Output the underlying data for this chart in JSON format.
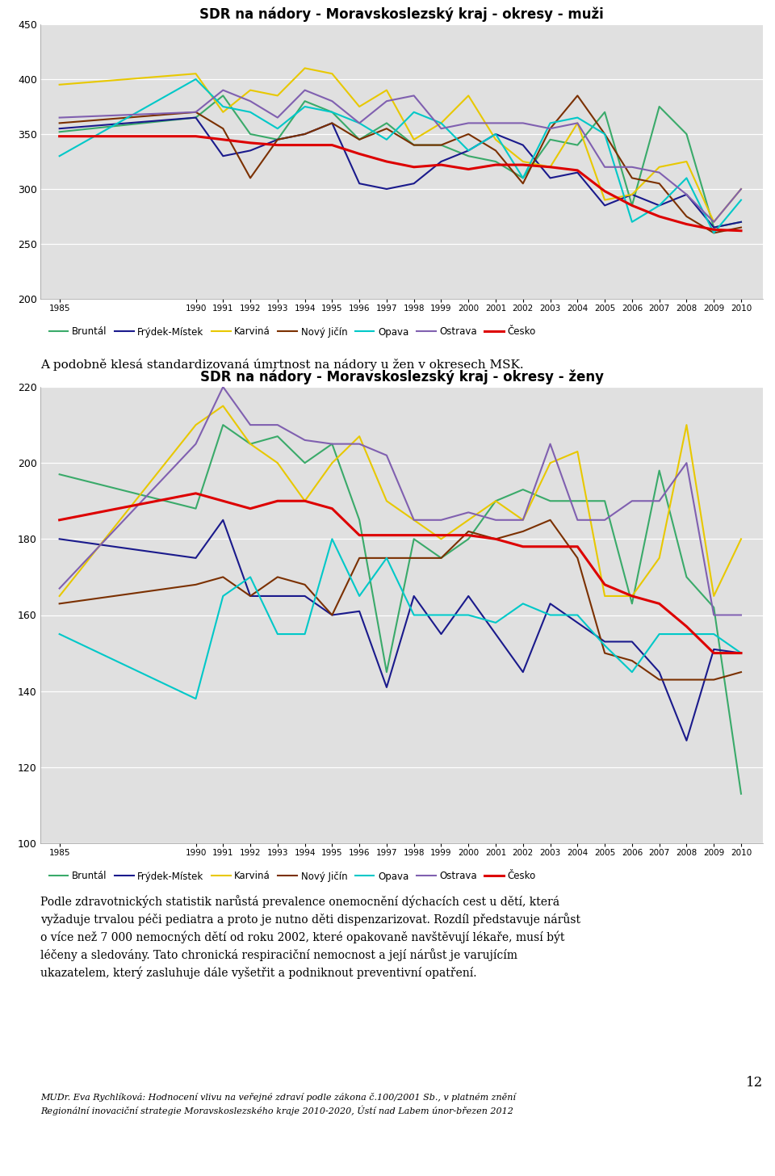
{
  "years": [
    1985,
    1990,
    1991,
    1992,
    1993,
    1994,
    1995,
    1996,
    1997,
    1998,
    1999,
    2000,
    2001,
    2002,
    2003,
    2004,
    2005,
    2006,
    2007,
    2008,
    2009,
    2010
  ],
  "title_muzi": "SDR na nádory - Moravskoslezský kraj - okresy - muži",
  "title_zeny": "SDR na nádory - Moravskoslezský kraj - okresy - ženy",
  "legend_labels": [
    "Bruntál",
    "Frýdek-Místek",
    "Karviná",
    "Nový Jičín",
    "Opava",
    "Ostrava",
    "Česko"
  ],
  "colors": [
    "#3aaa6a",
    "#1a1a8c",
    "#e8c800",
    "#7b3000",
    "#00c8c8",
    "#8060b0",
    "#dd0000"
  ],
  "muzi": {
    "Bruntal": [
      352,
      365,
      385,
      350,
      345,
      380,
      370,
      345,
      360,
      340,
      340,
      330,
      325,
      310,
      345,
      340,
      370,
      285,
      375,
      350,
      265,
      270
    ],
    "Frydek": [
      355,
      365,
      330,
      335,
      345,
      350,
      360,
      305,
      300,
      305,
      325,
      335,
      350,
      340,
      310,
      315,
      285,
      295,
      285,
      295,
      265,
      270
    ],
    "Karvina": [
      395,
      405,
      370,
      390,
      385,
      410,
      405,
      375,
      390,
      345,
      360,
      385,
      345,
      325,
      320,
      360,
      290,
      295,
      320,
      325,
      270,
      300
    ],
    "NovyJicin": [
      360,
      370,
      355,
      310,
      345,
      350,
      360,
      345,
      355,
      340,
      340,
      350,
      335,
      305,
      355,
      385,
      350,
      310,
      305,
      275,
      260,
      265
    ],
    "Opava": [
      330,
      400,
      375,
      370,
      355,
      375,
      370,
      360,
      345,
      370,
      360,
      335,
      350,
      310,
      360,
      365,
      350,
      270,
      285,
      310,
      260,
      290
    ],
    "Ostrava": [
      365,
      370,
      390,
      380,
      365,
      390,
      380,
      360,
      380,
      385,
      355,
      360,
      360,
      360,
      355,
      360,
      320,
      320,
      315,
      295,
      270,
      300
    ],
    "Cesko": [
      348,
      348,
      345,
      342,
      340,
      340,
      340,
      332,
      325,
      320,
      322,
      318,
      322,
      322,
      320,
      317,
      298,
      285,
      275,
      268,
      263,
      262
    ]
  },
  "zeny": {
    "Bruntal": [
      197,
      188,
      210,
      205,
      207,
      200,
      205,
      185,
      145,
      180,
      175,
      180,
      190,
      193,
      190,
      190,
      190,
      163,
      198,
      170,
      162,
      113
    ],
    "Frydek": [
      180,
      175,
      185,
      165,
      165,
      165,
      160,
      161,
      141,
      165,
      155,
      165,
      155,
      145,
      163,
      158,
      153,
      153,
      145,
      127,
      151,
      150
    ],
    "Karvina": [
      165,
      210,
      215,
      205,
      200,
      190,
      200,
      207,
      190,
      185,
      180,
      185,
      190,
      185,
      200,
      203,
      165,
      165,
      175,
      210,
      165,
      180
    ],
    "NovyJicin": [
      163,
      168,
      170,
      165,
      170,
      168,
      160,
      175,
      175,
      175,
      175,
      182,
      180,
      182,
      185,
      175,
      150,
      148,
      143,
      143,
      143,
      145
    ],
    "Opava": [
      155,
      138,
      165,
      170,
      155,
      155,
      180,
      165,
      175,
      160,
      160,
      160,
      158,
      163,
      160,
      160,
      152,
      145,
      155,
      155,
      155,
      150
    ],
    "Ostrava": [
      167,
      205,
      220,
      210,
      210,
      206,
      205,
      205,
      202,
      185,
      185,
      187,
      185,
      185,
      205,
      185,
      185,
      190,
      190,
      200,
      160,
      160
    ],
    "Cesko": [
      185,
      192,
      190,
      188,
      190,
      190,
      188,
      181,
      181,
      181,
      181,
      181,
      180,
      178,
      178,
      178,
      168,
      165,
      163,
      157,
      150,
      150
    ]
  },
  "muzi_ylim": [
    200,
    450
  ],
  "muzi_yticks": [
    200,
    250,
    300,
    350,
    400,
    450
  ],
  "zeny_ylim": [
    100,
    220
  ],
  "zeny_yticks": [
    100,
    120,
    140,
    160,
    180,
    200,
    220
  ],
  "bg_color": "#e0e0e0",
  "text_mid": "A podobně klesá standardizovaná úmrtnost na nádory u žen v okresech MSK.",
  "text_body_lines": [
    "Podle zdravotnických statistik narůstá prevalence onemocnění dýchacích cest u dětí, která",
    "vyžaduje trvalou péči pediatra a proto je nutno děti dispenzarizovat. Rozdíl představuje nárůst",
    "o více než 7 000 nemocných dětí od roku 2002, které opakovaně navštěvují lékaře, musí být",
    "léčeny a sledovány. Tato chronická respiraciční nemocnost a její nárůst je varujícím",
    "ukazatelem, který zasluhuje dále vyšetřit a podniknout preventivní opatření."
  ],
  "text_footer_line1": "MUDr. Eva Rychlíková: Hodnocení vlivu na veřejné zdraví podle zákona č.100/2001 Sb., v platném znění",
  "text_footer_line2": "Regionální inovaciční strategie Moravskoslezského kraje 2010-2020, Ústí nad Labem únor-březen 2012",
  "page_number": "12"
}
